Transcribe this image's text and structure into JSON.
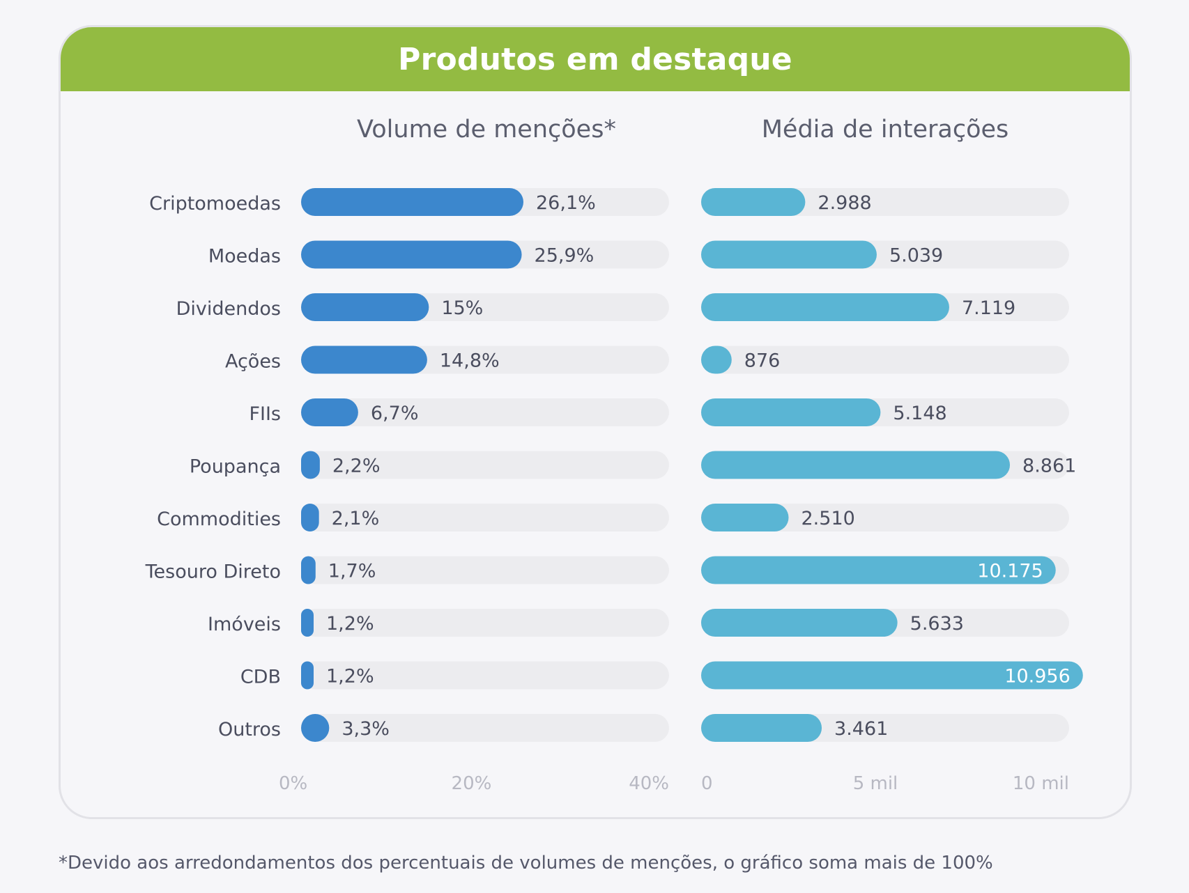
{
  "title": "Produtos em destaque",
  "footnote": "*Devido aos arredondamentos dos percentuais de volumes de menções, o gráfico soma mais de 100%",
  "colors": {
    "header": "#93bb42",
    "mentions_bar": "#3c87cd",
    "interactions_bar": "#5ab5d4",
    "track": "#ececef",
    "text": "#4a4d5e",
    "tick": "#b7b8c2"
  },
  "chart_data": [
    {
      "type": "bar",
      "orientation": "horizontal",
      "title": "Volume de menções*",
      "categories": [
        "Criptomoedas",
        "Moedas",
        "Dividendos",
        "Ações",
        "FIIs",
        "Poupança",
        "Commodities",
        "Tesouro Direto",
        "Imóveis",
        "CDB",
        "Outros"
      ],
      "values": [
        26.1,
        25.9,
        15,
        14.8,
        6.7,
        2.2,
        2.1,
        1.7,
        1.2,
        1.2,
        3.3
      ],
      "value_labels": [
        "26,1%",
        "25,9%",
        "15%",
        "14,8%",
        "6,7%",
        "2,2%",
        "2,1%",
        "1,7%",
        "1,2%",
        "1,2%",
        "3,3%"
      ],
      "xlim": [
        0,
        45
      ],
      "ticks": [
        0,
        20,
        40
      ],
      "tick_labels": [
        "0%",
        "20%",
        "40%"
      ]
    },
    {
      "type": "bar",
      "orientation": "horizontal",
      "title": "Média de interações",
      "categories": [
        "Criptomoedas",
        "Moedas",
        "Dividendos",
        "Ações",
        "FIIs",
        "Poupança",
        "Commodities",
        "Tesouro Direto",
        "Imóveis",
        "CDB",
        "Outros"
      ],
      "values": [
        2988,
        5039,
        7119,
        876,
        5148,
        8861,
        2510,
        10175,
        5633,
        10956,
        3461
      ],
      "value_labels": [
        "2.988",
        "5.039",
        "7.119",
        "876",
        "5.148",
        "8.861",
        "2.510",
        "10.175",
        "5.633",
        "10.956",
        "3.461"
      ],
      "xlim": [
        0,
        11000
      ],
      "ticks": [
        0,
        5000,
        10000
      ],
      "tick_labels": [
        "0",
        "5 mil",
        "10 mil"
      ]
    }
  ]
}
